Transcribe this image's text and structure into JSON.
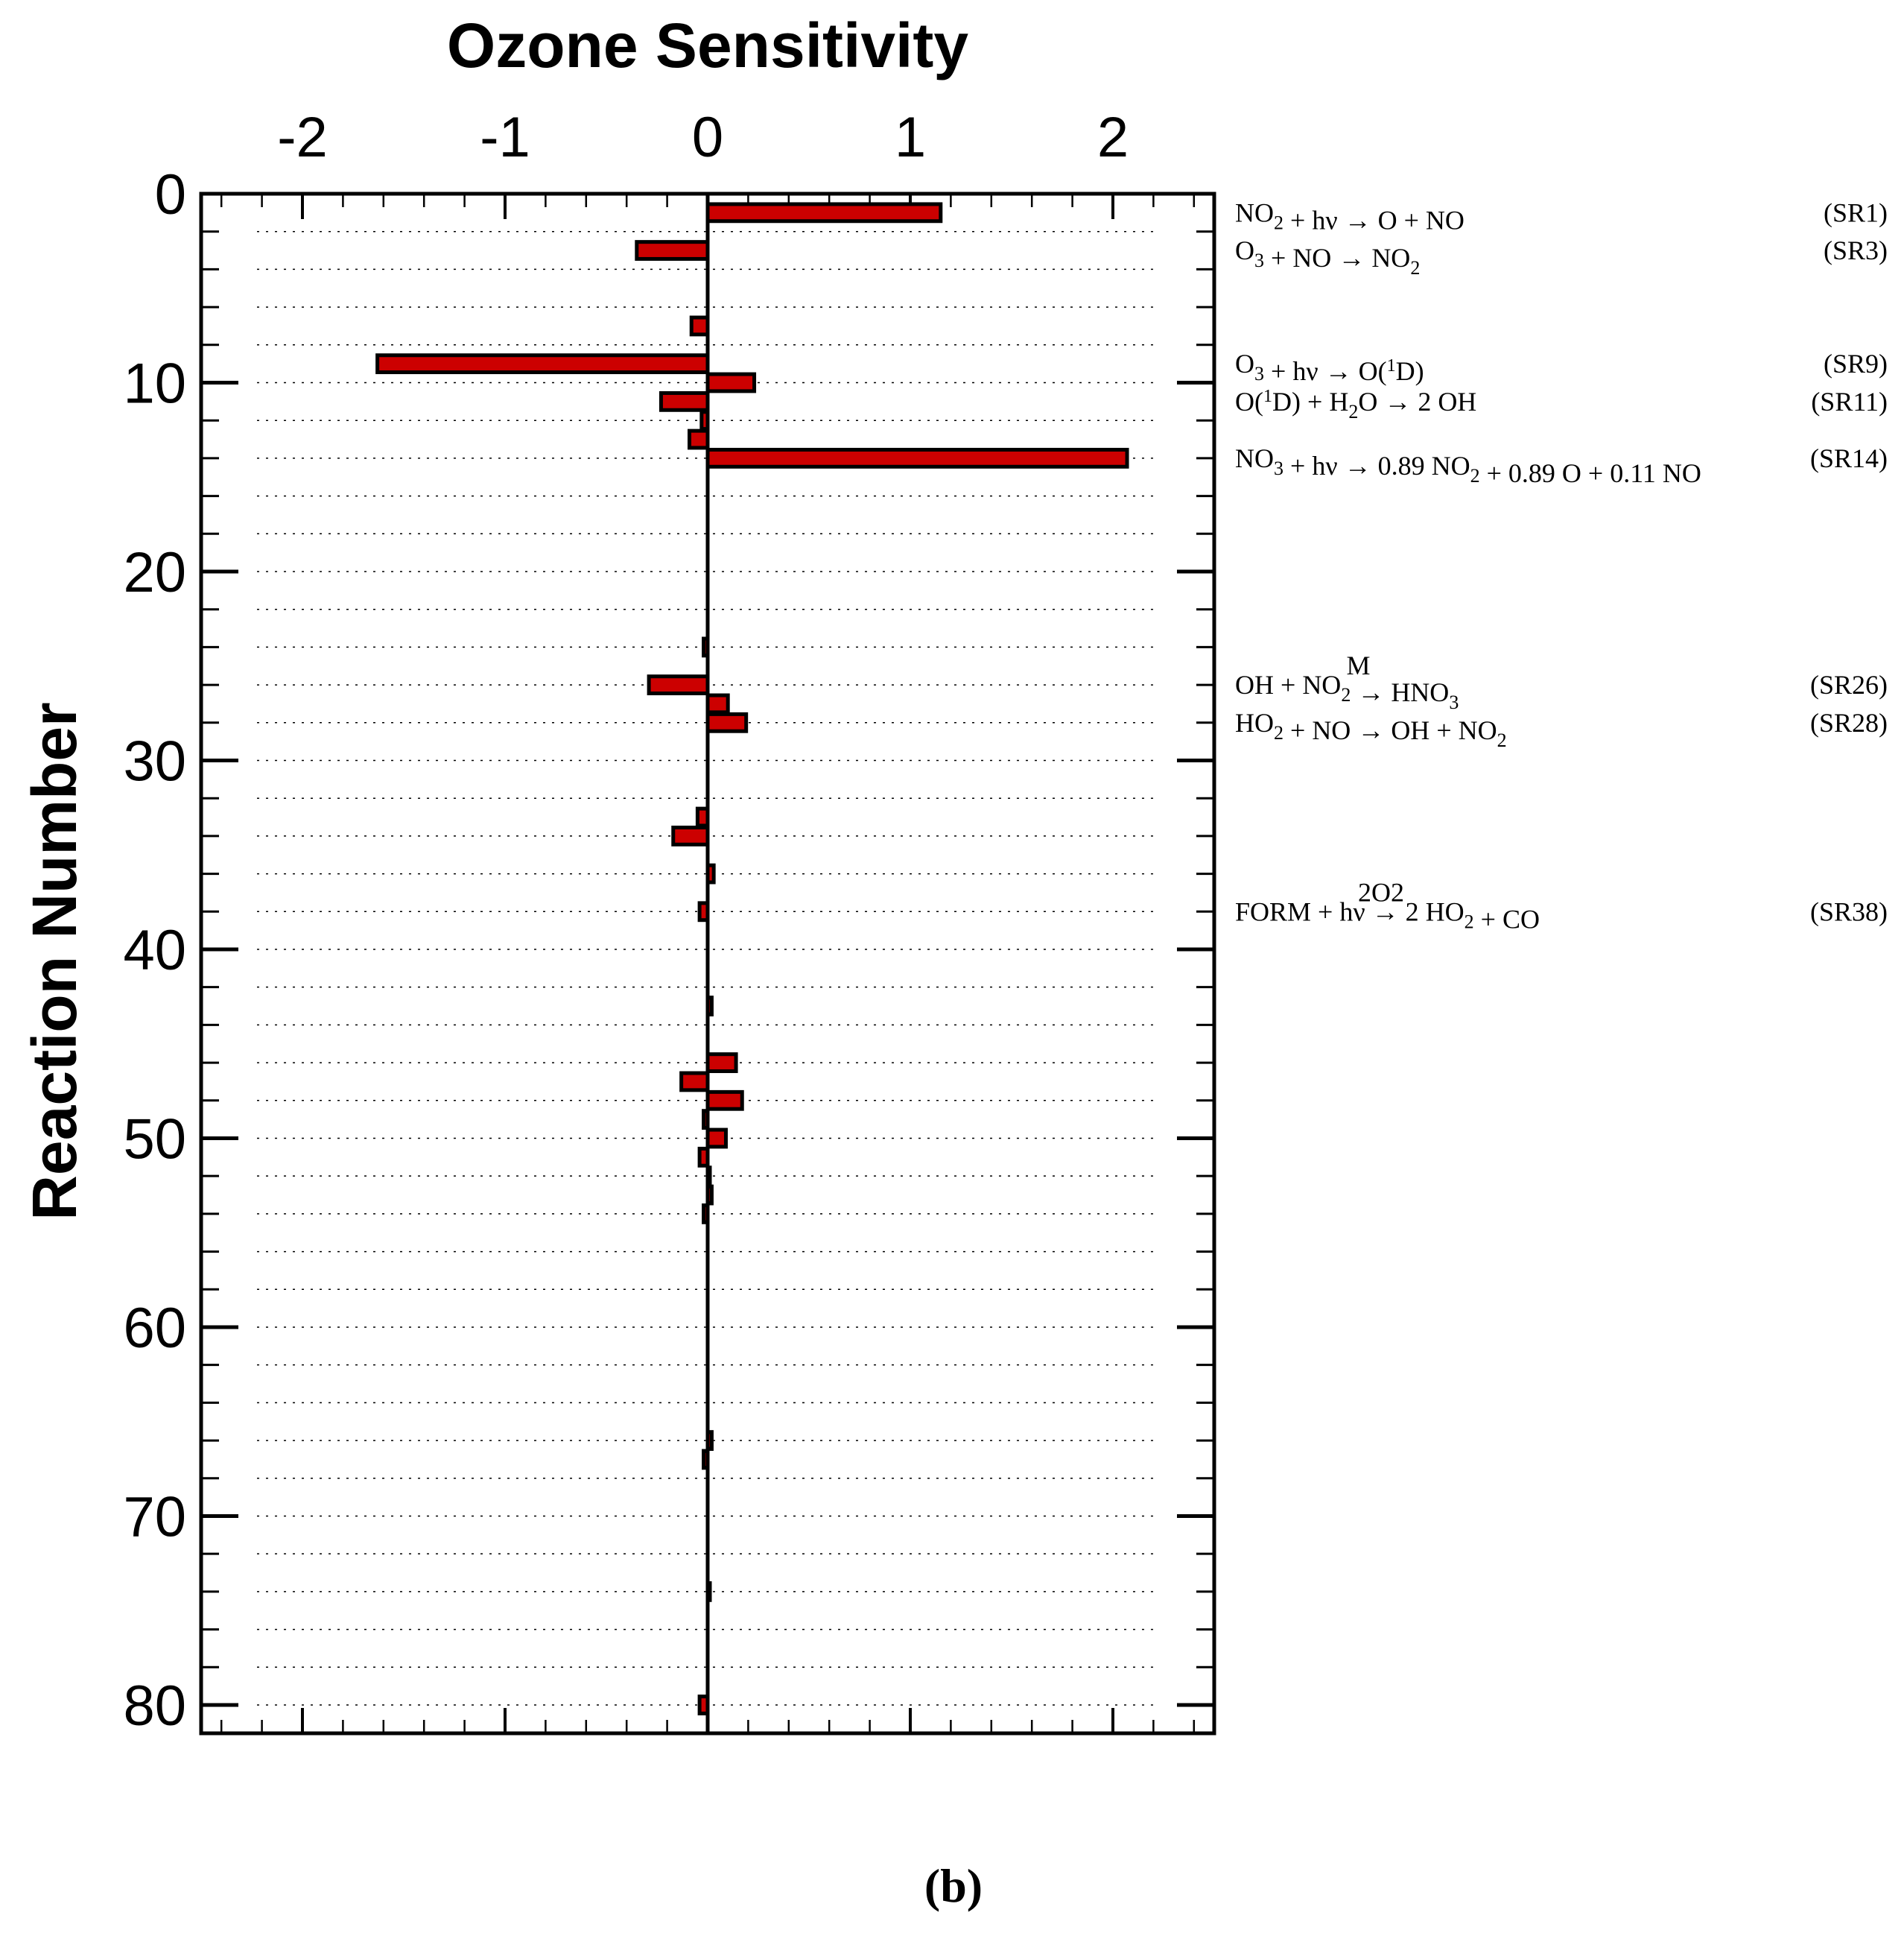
{
  "chart_data": {
    "type": "bar",
    "orientation": "horizontal",
    "title": "Ozone Sensitivity",
    "xlabel": "Ozone Sensitivity",
    "ylabel": "Reaction Number",
    "xlim": [
      -2.5,
      2.5
    ],
    "ylim": [
      0,
      81.5
    ],
    "xticks": [
      -2,
      -1,
      0,
      1,
      2
    ],
    "xtick_labels": [
      "-2",
      "-1",
      "0",
      "1",
      "2"
    ],
    "yticks": [
      0,
      10,
      20,
      30,
      40,
      50,
      60,
      70,
      80
    ],
    "ytick_labels": [
      "0",
      "10",
      "20",
      "30",
      "40",
      "50",
      "60",
      "70",
      "80"
    ],
    "bar_color": "#cc0000",
    "edge_color": "#000000",
    "bars": [
      {
        "reaction": 1,
        "value": 1.15
      },
      {
        "reaction": 3,
        "value": -0.35
      },
      {
        "reaction": 7,
        "value": -0.08
      },
      {
        "reaction": 9,
        "value": -1.63
      },
      {
        "reaction": 10,
        "value": 0.23
      },
      {
        "reaction": 11,
        "value": -0.23
      },
      {
        "reaction": 12,
        "value": -0.03
      },
      {
        "reaction": 13,
        "value": -0.09
      },
      {
        "reaction": 14,
        "value": 2.07
      },
      {
        "reaction": 24,
        "value": -0.02
      },
      {
        "reaction": 26,
        "value": -0.29
      },
      {
        "reaction": 27,
        "value": 0.1
      },
      {
        "reaction": 28,
        "value": 0.19
      },
      {
        "reaction": 33,
        "value": -0.05
      },
      {
        "reaction": 34,
        "value": -0.17
      },
      {
        "reaction": 36,
        "value": 0.03
      },
      {
        "reaction": 38,
        "value": -0.04
      },
      {
        "reaction": 43,
        "value": 0.02
      },
      {
        "reaction": 46,
        "value": 0.14
      },
      {
        "reaction": 47,
        "value": -0.13
      },
      {
        "reaction": 48,
        "value": 0.17
      },
      {
        "reaction": 49,
        "value": -0.02
      },
      {
        "reaction": 50,
        "value": 0.09
      },
      {
        "reaction": 51,
        "value": -0.04
      },
      {
        "reaction": 52,
        "value": 0.01
      },
      {
        "reaction": 53,
        "value": 0.02
      },
      {
        "reaction": 54,
        "value": -0.02
      },
      {
        "reaction": 66,
        "value": 0.02
      },
      {
        "reaction": 67,
        "value": -0.02
      },
      {
        "reaction": 74,
        "value": 0.01
      },
      {
        "reaction": 80,
        "value": -0.04
      }
    ],
    "annotations": [
      {
        "reaction": 1,
        "equation": "NO2 + hν → O + NO",
        "label": "(SR1)"
      },
      {
        "reaction": 3,
        "equation": "O3 + NO → NO2",
        "label": "(SR3)"
      },
      {
        "reaction": 9,
        "equation": "O3 + hν → O(1D)",
        "label": "(SR9)"
      },
      {
        "reaction": 11,
        "equation": "O(1D) + H2O → 2 OH",
        "label": "(SR11)"
      },
      {
        "reaction": 14,
        "equation": "NO3 + hν → 0.89 NO2 + 0.89 O + 0.11 NO",
        "label": "(SR14)"
      },
      {
        "reaction": 26,
        "equation": "OH + NO2 →(M) HNO3",
        "label": "(SR26)"
      },
      {
        "reaction": 28,
        "equation": "HO2 + NO → OH + NO2",
        "label": "(SR28)"
      },
      {
        "reaction": 38,
        "equation": "FORM + hν →(2O2) 2 HO2 + CO",
        "label": "(SR38)"
      }
    ],
    "grid": "dotted",
    "caption": "(b)"
  }
}
